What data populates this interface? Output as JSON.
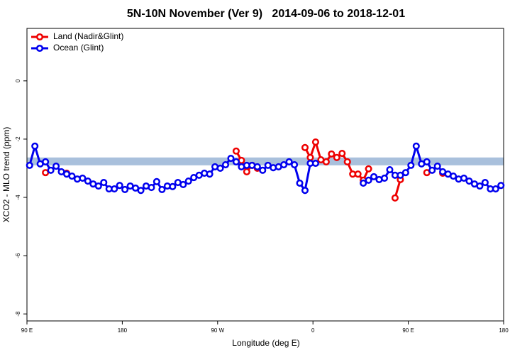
{
  "chart_data": {
    "type": "line",
    "title": "5N-10N November (Ver 9)   2014-09-06 to 2018-12-01",
    "x_label": "Longitude (deg E)",
    "y_label": "XCO2 - MLO trend (ppm)",
    "xlim": [
      90,
      540
    ],
    "ylim": [
      -8.24,
      1.8
    ],
    "xticks": [
      {
        "value": 90,
        "label": "90 E"
      },
      180,
      {
        "value": 270,
        "label": "90 W"
      },
      {
        "value": 360,
        "label": "0"
      },
      {
        "value": 450,
        "label": "90 E"
      },
      {
        "value": 540,
        "label": "180"
      }
    ],
    "yticks": [
      0,
      -2,
      -4,
      -6,
      -8
    ],
    "legend": "top-left",
    "band": {
      "range": [
        -2.9,
        -2.63
      ],
      "color": "#a9c0dc"
    },
    "x": [
      92.5,
      97.5,
      102.5,
      107.5,
      112.5,
      117.5,
      122.5,
      127.5,
      132.5,
      137.5,
      142.5,
      147.5,
      152.5,
      157.5,
      162.5,
      167.5,
      172.5,
      177.5,
      182.5,
      187.5,
      192.5,
      197.5,
      202.5,
      207.5,
      212.5,
      217.5,
      222.5,
      227.5,
      232.5,
      237.5,
      242.5,
      247.5,
      252.5,
      257.5,
      262.5,
      267.5,
      272.5,
      277.5,
      282.5,
      287.5,
      292.5,
      297.5,
      302.5,
      307.5,
      312.5,
      317.5,
      322.5,
      327.5,
      332.5,
      337.5,
      342.5,
      347.5,
      352.5,
      357.5,
      362.5,
      367.5,
      372.5,
      377.5,
      382.5,
      387.5,
      392.5,
      397.5,
      402.5,
      407.5,
      412.5,
      417.5,
      422.5,
      427.5,
      432.5,
      437.5,
      442.5,
      447.5,
      452.5,
      457.5,
      462.5,
      467.5,
      472.5,
      477.5,
      482.5,
      487.5,
      492.5,
      497.5,
      502.5,
      507.5,
      512.5,
      517.5,
      522.5,
      527.5,
      532.5,
      537.5
    ],
    "series": [
      {
        "name": "Land (Nadir&Glint)",
        "color": "#ee0000",
        "values": [
          null,
          null,
          null,
          -3.15,
          null,
          null,
          null,
          -3.17,
          null,
          null,
          null,
          null,
          null,
          null,
          null,
          null,
          null,
          null,
          null,
          null,
          null,
          null,
          null,
          null,
          null,
          null,
          null,
          null,
          null,
          null,
          null,
          null,
          null,
          null,
          null,
          null,
          null,
          null,
          null,
          -2.41,
          -2.73,
          -3.12,
          -2.9,
          -3.0,
          null,
          null,
          null,
          null,
          null,
          null,
          null,
          null,
          -2.29,
          -2.63,
          -2.1,
          -2.71,
          -2.78,
          -2.51,
          -2.63,
          -2.49,
          -2.78,
          -3.2,
          -3.2,
          -3.41,
          -3.02,
          null,
          null,
          null,
          null,
          -4.02,
          -3.39,
          null,
          null,
          null,
          null,
          -3.15,
          null,
          null,
          -3.17,
          null,
          null,
          null,
          null,
          null,
          null,
          null,
          null,
          null,
          null,
          null
        ]
      },
      {
        "name": "Ocean (Glint)",
        "color": "#0000ee",
        "values": [
          -2.9,
          -2.24,
          -2.85,
          -2.78,
          -3.07,
          -2.93,
          -3.12,
          -3.2,
          -3.27,
          -3.37,
          -3.34,
          -3.44,
          -3.54,
          -3.61,
          -3.49,
          -3.71,
          -3.71,
          -3.59,
          -3.73,
          -3.61,
          -3.68,
          -3.76,
          -3.61,
          -3.66,
          -3.46,
          -3.73,
          -3.61,
          -3.63,
          -3.49,
          -3.56,
          -3.44,
          -3.32,
          -3.24,
          -3.17,
          -3.2,
          -2.95,
          -3.0,
          -2.88,
          -2.66,
          -2.78,
          -2.95,
          -2.9,
          -2.9,
          -2.95,
          -3.07,
          -2.9,
          -2.98,
          -2.95,
          -2.88,
          -2.78,
          -2.88,
          -3.51,
          -3.76,
          -2.83,
          -2.83,
          null,
          null,
          null,
          null,
          null,
          null,
          null,
          null,
          -3.51,
          -3.41,
          -3.29,
          -3.39,
          -3.34,
          -3.05,
          -3.24,
          -3.24,
          -3.15,
          -2.9,
          -2.24,
          -2.85,
          -2.78,
          -3.07,
          -2.93,
          -3.12,
          -3.2,
          -3.27,
          -3.37,
          -3.34,
          -3.44,
          -3.54,
          -3.61,
          -3.49,
          -3.71,
          -3.71,
          -3.59
        ]
      }
    ]
  }
}
